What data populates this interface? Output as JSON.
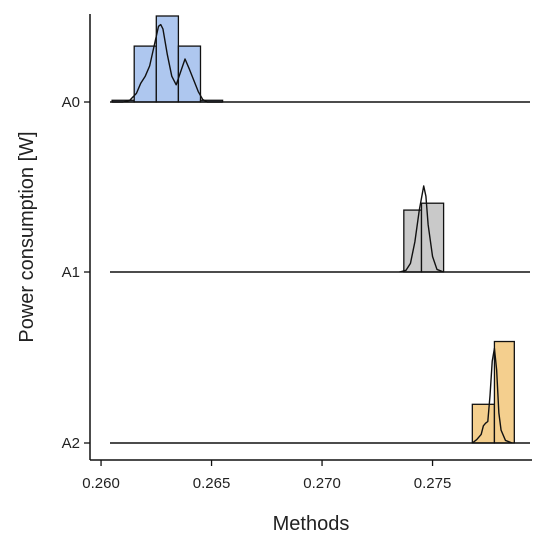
{
  "chart_data": {
    "type": "ridgeline",
    "title": "",
    "xlabel": "Methods",
    "ylabel": "Power consumption [W]",
    "xlim": [
      0.2595,
      0.2795
    ],
    "x_ticks": [
      0.26,
      0.265,
      0.27,
      0.275
    ],
    "x_tick_labels": [
      "0.260",
      "0.265",
      "0.270",
      "0.275"
    ],
    "y_tick_labels": [
      "A0",
      "A1",
      "A2"
    ],
    "grid": false,
    "legend": "none",
    "series": [
      {
        "label": "A0",
        "color": "#aec7ef",
        "histogram": [
          {
            "x0": 0.2605,
            "x1": 0.2615,
            "height": 0.02
          },
          {
            "x0": 0.2615,
            "x1": 0.2625,
            "height": 0.65
          },
          {
            "x0": 0.2625,
            "x1": 0.2635,
            "height": 1.0
          },
          {
            "x0": 0.2635,
            "x1": 0.2645,
            "height": 0.65
          },
          {
            "x0": 0.2645,
            "x1": 0.2655,
            "height": 0.02
          }
        ],
        "density": [
          [
            0.2605,
            0.0
          ],
          [
            0.261,
            0.0
          ],
          [
            0.2613,
            0.02
          ],
          [
            0.2616,
            0.1
          ],
          [
            0.2618,
            0.22
          ],
          [
            0.262,
            0.3
          ],
          [
            0.2622,
            0.42
          ],
          [
            0.2624,
            0.65
          ],
          [
            0.2626,
            0.88
          ],
          [
            0.2627,
            0.9
          ],
          [
            0.2628,
            0.85
          ],
          [
            0.263,
            0.55
          ],
          [
            0.2632,
            0.3
          ],
          [
            0.2634,
            0.2
          ],
          [
            0.2636,
            0.35
          ],
          [
            0.2638,
            0.5
          ],
          [
            0.264,
            0.38
          ],
          [
            0.2642,
            0.25
          ],
          [
            0.2644,
            0.12
          ],
          [
            0.2646,
            0.03
          ],
          [
            0.2648,
            0.0
          ],
          [
            0.2655,
            0.0
          ]
        ]
      },
      {
        "label": "A1",
        "color": "#c9c9c9",
        "histogram": [
          {
            "x0": 0.2737,
            "x1": 0.2745,
            "height": 0.72
          },
          {
            "x0": 0.2745,
            "x1": 0.2755,
            "height": 0.8
          }
        ],
        "density": [
          [
            0.2735,
            0.0
          ],
          [
            0.2738,
            0.02
          ],
          [
            0.274,
            0.1
          ],
          [
            0.2742,
            0.35
          ],
          [
            0.2744,
            0.72
          ],
          [
            0.2746,
            1.0
          ],
          [
            0.2747,
            0.88
          ],
          [
            0.2748,
            0.55
          ],
          [
            0.275,
            0.18
          ],
          [
            0.2752,
            0.03
          ],
          [
            0.2755,
            0.0
          ]
        ]
      },
      {
        "label": "A2",
        "color": "#f4cf8e",
        "histogram": [
          {
            "x0": 0.2768,
            "x1": 0.2778,
            "height": 0.45
          },
          {
            "x0": 0.2778,
            "x1": 0.2787,
            "height": 1.18
          }
        ],
        "density": [
          [
            0.2768,
            0.0
          ],
          [
            0.277,
            0.04
          ],
          [
            0.2772,
            0.1
          ],
          [
            0.2773,
            0.2
          ],
          [
            0.2774,
            0.23
          ],
          [
            0.2775,
            0.25
          ],
          [
            0.2776,
            0.55
          ],
          [
            0.2777,
            0.95
          ],
          [
            0.2778,
            1.1
          ],
          [
            0.2779,
            0.85
          ],
          [
            0.278,
            0.35
          ],
          [
            0.2781,
            0.15
          ],
          [
            0.2783,
            0.03
          ],
          [
            0.2786,
            0.0
          ]
        ]
      }
    ]
  }
}
